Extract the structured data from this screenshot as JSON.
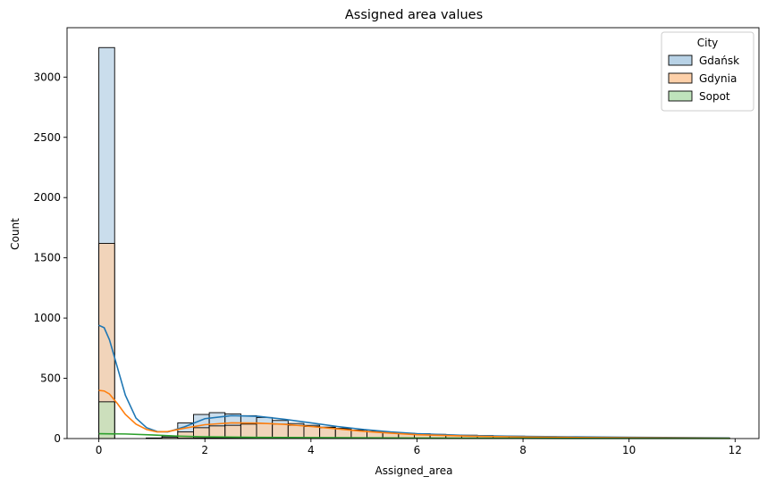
{
  "chart_data": {
    "type": "histogram",
    "title": "Assigned area values",
    "xlabel": "Assigned_area",
    "ylabel": "Count",
    "xlim": [
      -0.6,
      12.45
    ],
    "ylim": [
      0,
      3410
    ],
    "xticks": [
      "0",
      "2",
      "4",
      "6",
      "8",
      "10",
      "12"
    ],
    "xtick_values": [
      0,
      2,
      4,
      6,
      8,
      10,
      12
    ],
    "yticks": [
      "0",
      "500",
      "1000",
      "1500",
      "2000",
      "2500",
      "3000"
    ],
    "ytick_values": [
      0,
      500,
      1000,
      1500,
      2000,
      2500,
      3000
    ],
    "bin_start": 0,
    "bin_width": 0.2975,
    "legend": {
      "title": "City",
      "location": "upper right"
    },
    "series": [
      {
        "name": "Gdańsk",
        "fill": "#b8d2e6",
        "line": "#1f77b4",
        "counts": [
          3245,
          0,
          0,
          5,
          20,
          130,
          200,
          215,
          205,
          190,
          175,
          150,
          125,
          110,
          95,
          85,
          70,
          60,
          50,
          45,
          40,
          35,
          30,
          28,
          25,
          22,
          20,
          18,
          16,
          14,
          13,
          12,
          11,
          10,
          9,
          8,
          7,
          6,
          5,
          4
        ],
        "kde_x": [
          0.0,
          0.1,
          0.2,
          0.35,
          0.5,
          0.7,
          0.9,
          1.1,
          1.3,
          1.6,
          2.0,
          2.5,
          3.0,
          3.5,
          4.0,
          4.5,
          5.0,
          5.5,
          6.0,
          7.0,
          8.0,
          9.0,
          10.0,
          11.0,
          11.9
        ],
        "kde_y": [
          940,
          920,
          820,
          590,
          360,
          170,
          90,
          58,
          55,
          95,
          165,
          190,
          185,
          160,
          130,
          100,
          75,
          55,
          40,
          25,
          18,
          14,
          11,
          8,
          5
        ]
      },
      {
        "name": "Gdynia",
        "fill": "#fdd0a9",
        "line": "#ff7f0e",
        "counts": [
          1620,
          0,
          0,
          2,
          10,
          55,
          90,
          105,
          110,
          120,
          125,
          120,
          110,
          100,
          90,
          80,
          70,
          60,
          50,
          42,
          35,
          30,
          25,
          22,
          19,
          16,
          14,
          12,
          10,
          9,
          8,
          7,
          6,
          5,
          5,
          4,
          4,
          3,
          3,
          2
        ],
        "kde_x": [
          0.0,
          0.1,
          0.2,
          0.35,
          0.5,
          0.7,
          0.9,
          1.1,
          1.3,
          1.6,
          2.0,
          2.5,
          3.0,
          3.5,
          4.0,
          4.5,
          5.0,
          5.5,
          6.0,
          7.0,
          8.0,
          9.0,
          10.0,
          11.0,
          11.9
        ],
        "kde_y": [
          400,
          395,
          370,
          290,
          200,
          120,
          75,
          55,
          58,
          85,
          115,
          130,
          128,
          118,
          100,
          80,
          60,
          45,
          32,
          20,
          13,
          9,
          6,
          4,
          2
        ]
      },
      {
        "name": "Sopot",
        "fill": "#bfe3bc",
        "line": "#2ca02c",
        "counts": [
          305,
          0,
          0,
          0,
          0,
          3,
          5,
          6,
          7,
          7,
          7,
          6,
          6,
          5,
          5,
          4,
          4,
          3,
          3,
          2,
          2,
          2,
          2,
          1,
          1,
          1,
          1,
          1,
          1,
          1,
          1,
          0,
          0,
          0,
          0,
          0,
          0,
          0,
          0,
          0
        ],
        "kde_x": [
          0.0,
          0.5,
          1.0,
          1.5,
          2.0,
          3.0,
          4.0,
          5.0,
          6.0,
          8.0,
          10.0,
          11.9
        ],
        "kde_y": [
          40,
          38,
          30,
          20,
          14,
          10,
          8,
          6,
          4,
          2,
          1,
          1
        ]
      }
    ]
  }
}
